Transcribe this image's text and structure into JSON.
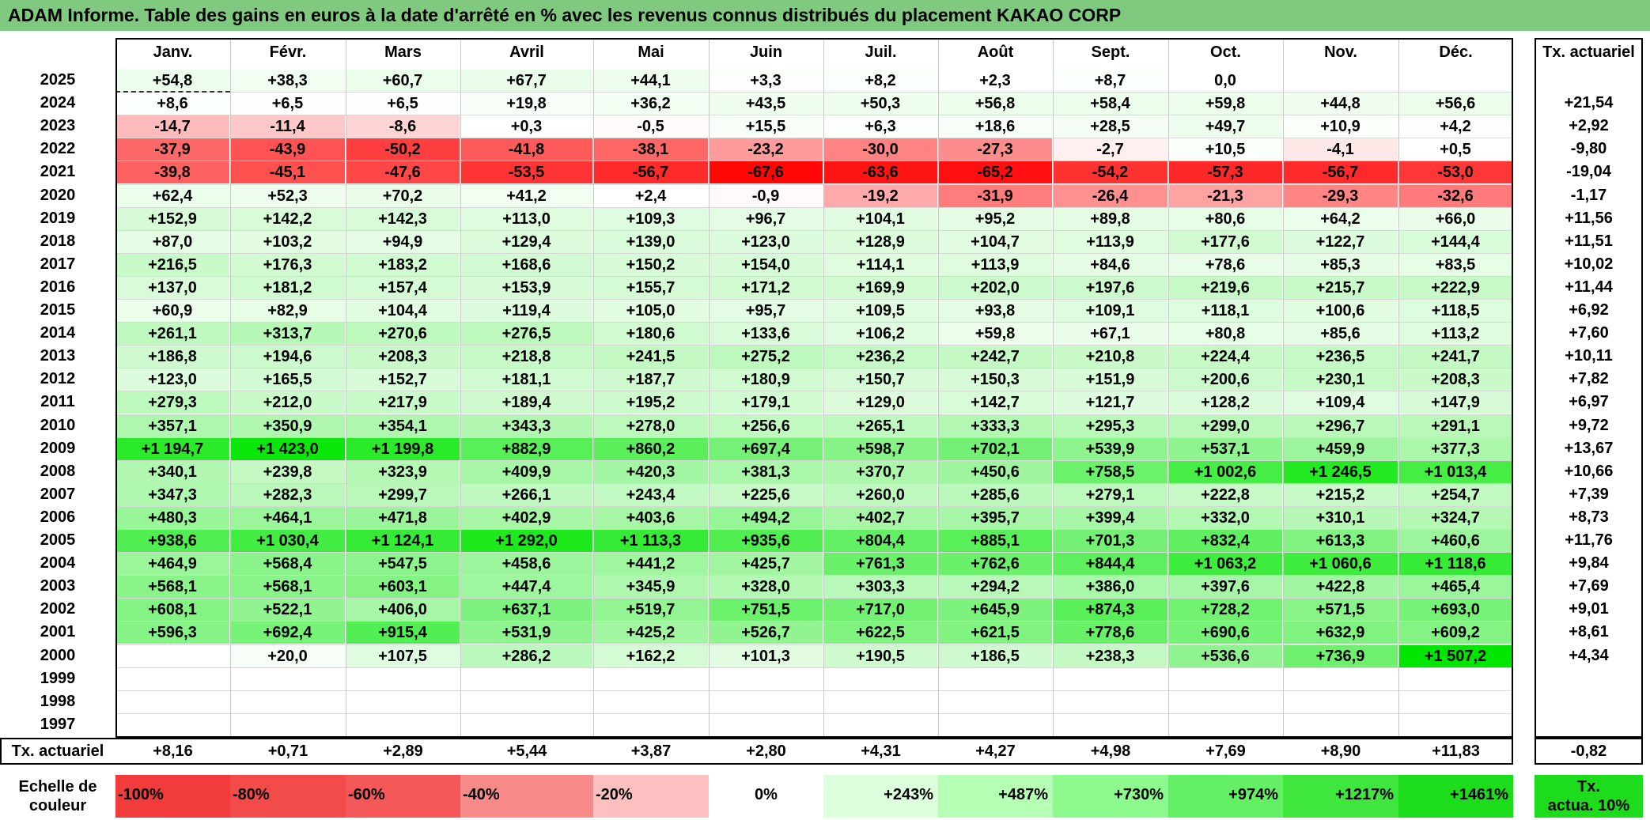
{
  "title": "ADAM Informe. Table des gains en euros à la date d'arrêté en % avec les revenus connus distribués du placement KAKAO CORP",
  "chart_data": {
    "type": "heatmap",
    "title": "ADAM Informe. Table des gains en euros à la date d'arrêté en % avec les revenus connus distribués du placement KAKAO CORP",
    "months": [
      "Janv.",
      "Févr.",
      "Mars",
      "Avril",
      "Mai",
      "Juin",
      "Juil.",
      "Août",
      "Sept.",
      "Oct.",
      "Nov.",
      "Déc."
    ],
    "rate_header": "Tx. actuariel",
    "rows": [
      {
        "year": "2025",
        "values": [
          "+54,8",
          "+38,3",
          "+60,7",
          "+67,7",
          "+44,1",
          "+3,3",
          "+8,2",
          "+2,3",
          "+8,7",
          "0,0",
          "",
          ""
        ],
        "rate": ""
      },
      {
        "year": "2024",
        "values": [
          "+8,6",
          "+6,5",
          "+6,5",
          "+19,8",
          "+36,2",
          "+43,5",
          "+50,3",
          "+56,8",
          "+58,4",
          "+59,8",
          "+44,8",
          "+56,6"
        ],
        "rate": "+21,54"
      },
      {
        "year": "2023",
        "values": [
          "-14,7",
          "-11,4",
          "-8,6",
          "+0,3",
          "-0,5",
          "+15,5",
          "+6,3",
          "+18,6",
          "+28,5",
          "+49,7",
          "+10,9",
          "+4,2"
        ],
        "rate": "+2,92"
      },
      {
        "year": "2022",
        "values": [
          "-37,9",
          "-43,9",
          "-50,2",
          "-41,8",
          "-38,1",
          "-23,2",
          "-30,0",
          "-27,3",
          "-2,7",
          "+10,5",
          "-4,1",
          "+0,5"
        ],
        "rate": "-9,80"
      },
      {
        "year": "2021",
        "values": [
          "-39,8",
          "-45,1",
          "-47,6",
          "-53,5",
          "-56,7",
          "-67,6",
          "-63,6",
          "-65,2",
          "-54,2",
          "-57,3",
          "-56,7",
          "-53,0"
        ],
        "rate": "-19,04"
      },
      {
        "year": "2020",
        "values": [
          "+62,4",
          "+52,3",
          "+70,2",
          "+41,2",
          "+2,4",
          "-0,9",
          "-19,2",
          "-31,9",
          "-26,4",
          "-21,3",
          "-29,3",
          "-32,6"
        ],
        "rate": "-1,17"
      },
      {
        "year": "2019",
        "values": [
          "+152,9",
          "+142,2",
          "+142,3",
          "+113,0",
          "+109,3",
          "+96,7",
          "+104,1",
          "+95,2",
          "+89,8",
          "+80,6",
          "+64,2",
          "+66,0"
        ],
        "rate": "+11,56"
      },
      {
        "year": "2018",
        "values": [
          "+87,0",
          "+103,2",
          "+94,9",
          "+129,4",
          "+139,0",
          "+123,0",
          "+128,9",
          "+104,7",
          "+113,9",
          "+177,6",
          "+122,7",
          "+144,4"
        ],
        "rate": "+11,51"
      },
      {
        "year": "2017",
        "values": [
          "+216,5",
          "+176,3",
          "+183,2",
          "+168,6",
          "+150,2",
          "+154,0",
          "+114,1",
          "+113,9",
          "+84,6",
          "+78,6",
          "+85,3",
          "+83,5"
        ],
        "rate": "+10,02"
      },
      {
        "year": "2016",
        "values": [
          "+137,0",
          "+181,2",
          "+157,4",
          "+153,9",
          "+155,7",
          "+171,2",
          "+169,9",
          "+202,0",
          "+197,6",
          "+219,6",
          "+215,7",
          "+222,9"
        ],
        "rate": "+11,44"
      },
      {
        "year": "2015",
        "values": [
          "+60,9",
          "+82,9",
          "+104,4",
          "+119,4",
          "+105,0",
          "+95,7",
          "+109,5",
          "+93,8",
          "+109,1",
          "+118,1",
          "+100,6",
          "+118,5"
        ],
        "rate": "+6,92"
      },
      {
        "year": "2014",
        "values": [
          "+261,1",
          "+313,7",
          "+270,6",
          "+276,5",
          "+180,6",
          "+133,6",
          "+106,2",
          "+59,8",
          "+67,1",
          "+80,8",
          "+85,6",
          "+113,2"
        ],
        "rate": "+7,60"
      },
      {
        "year": "2013",
        "values": [
          "+186,8",
          "+194,6",
          "+208,3",
          "+218,8",
          "+241,5",
          "+275,2",
          "+236,2",
          "+242,7",
          "+210,8",
          "+224,4",
          "+236,5",
          "+241,7"
        ],
        "rate": "+10,11"
      },
      {
        "year": "2012",
        "values": [
          "+123,0",
          "+165,5",
          "+152,7",
          "+181,1",
          "+187,7",
          "+180,9",
          "+150,7",
          "+150,3",
          "+151,9",
          "+200,6",
          "+230,1",
          "+208,3"
        ],
        "rate": "+7,82"
      },
      {
        "year": "2011",
        "values": [
          "+279,3",
          "+212,0",
          "+217,9",
          "+189,4",
          "+195,2",
          "+179,1",
          "+129,0",
          "+142,7",
          "+121,7",
          "+128,2",
          "+109,4",
          "+147,9"
        ],
        "rate": "+6,97"
      },
      {
        "year": "2010",
        "values": [
          "+357,1",
          "+350,9",
          "+354,1",
          "+343,3",
          "+278,0",
          "+256,6",
          "+265,1",
          "+333,3",
          "+295,3",
          "+299,0",
          "+296,7",
          "+291,1"
        ],
        "rate": "+9,72"
      },
      {
        "year": "2009",
        "values": [
          "+1 194,7",
          "+1 423,0",
          "+1 199,8",
          "+882,9",
          "+860,2",
          "+697,4",
          "+598,7",
          "+702,1",
          "+539,9",
          "+537,1",
          "+459,9",
          "+377,3"
        ],
        "rate": "+13,67"
      },
      {
        "year": "2008",
        "values": [
          "+340,1",
          "+239,8",
          "+323,9",
          "+409,9",
          "+420,3",
          "+381,3",
          "+370,7",
          "+450,6",
          "+758,5",
          "+1 002,6",
          "+1 246,5",
          "+1 013,4"
        ],
        "rate": "+10,66"
      },
      {
        "year": "2007",
        "values": [
          "+347,3",
          "+282,3",
          "+299,7",
          "+266,1",
          "+243,4",
          "+225,6",
          "+260,0",
          "+285,6",
          "+279,1",
          "+222,8",
          "+215,2",
          "+254,7"
        ],
        "rate": "+7,39"
      },
      {
        "year": "2006",
        "values": [
          "+480,3",
          "+464,1",
          "+471,8",
          "+402,9",
          "+403,6",
          "+494,2",
          "+402,7",
          "+395,7",
          "+399,4",
          "+332,0",
          "+310,1",
          "+324,7"
        ],
        "rate": "+8,73"
      },
      {
        "year": "2005",
        "values": [
          "+938,6",
          "+1 030,4",
          "+1 124,1",
          "+1 292,0",
          "+1 113,3",
          "+935,6",
          "+804,4",
          "+885,1",
          "+701,3",
          "+832,4",
          "+613,3",
          "+460,6"
        ],
        "rate": "+11,76"
      },
      {
        "year": "2004",
        "values": [
          "+464,9",
          "+568,4",
          "+547,5",
          "+458,6",
          "+441,2",
          "+425,7",
          "+761,3",
          "+762,6",
          "+844,4",
          "+1 063,2",
          "+1 060,6",
          "+1 118,6"
        ],
        "rate": "+9,84"
      },
      {
        "year": "2003",
        "values": [
          "+568,1",
          "+568,1",
          "+603,1",
          "+447,4",
          "+345,9",
          "+328,0",
          "+303,3",
          "+294,2",
          "+386,0",
          "+397,6",
          "+422,8",
          "+465,4"
        ],
        "rate": "+7,69"
      },
      {
        "year": "2002",
        "values": [
          "+608,1",
          "+522,1",
          "+406,0",
          "+637,1",
          "+519,7",
          "+751,5",
          "+717,0",
          "+645,9",
          "+874,3",
          "+728,2",
          "+571,5",
          "+693,0"
        ],
        "rate": "+9,01"
      },
      {
        "year": "2001",
        "values": [
          "+596,3",
          "+692,4",
          "+915,4",
          "+531,9",
          "+425,2",
          "+526,7",
          "+622,5",
          "+621,5",
          "+778,6",
          "+690,6",
          "+632,9",
          "+609,2"
        ],
        "rate": "+8,61"
      },
      {
        "year": "2000",
        "values": [
          "",
          "+20,0",
          "+107,5",
          "+286,2",
          "+162,2",
          "+101,3",
          "+190,5",
          "+186,5",
          "+238,3",
          "+536,6",
          "+736,9",
          "+1 507,2"
        ],
        "rate": "+4,34"
      },
      {
        "year": "1999",
        "values": [
          "",
          "",
          "",
          "",
          "",
          "",
          "",
          "",
          "",
          "",
          "",
          ""
        ],
        "rate": ""
      },
      {
        "year": "1998",
        "values": [
          "",
          "",
          "",
          "",
          "",
          "",
          "",
          "",
          "",
          "",
          "",
          ""
        ],
        "rate": ""
      },
      {
        "year": "1997",
        "values": [
          "",
          "",
          "",
          "",
          "",
          "",
          "",
          "",
          "",
          "",
          "",
          ""
        ],
        "rate": ""
      }
    ],
    "footer": {
      "label": "Tx. actuariel",
      "values": [
        "+8,16",
        "+0,71",
        "+2,89",
        "+5,44",
        "+3,87",
        "+2,80",
        "+4,31",
        "+4,27",
        "+4,98",
        "+7,69",
        "+8,90",
        "+11,83"
      ],
      "rate": "-0,82"
    },
    "legend": {
      "label_line1": "Echelle de",
      "label_line2": "couleur",
      "steps": [
        {
          "text": "-100%",
          "color": "#f23c3c",
          "align": "left"
        },
        {
          "text": "-80%",
          "color": "#f34a4a",
          "align": "left"
        },
        {
          "text": "-60%",
          "color": "#f55858",
          "align": "left"
        },
        {
          "text": "-40%",
          "color": "#f88a8a",
          "align": "left"
        },
        {
          "text": "-20%",
          "color": "#fcc0c0",
          "align": "left"
        },
        {
          "text": "0%",
          "color": "#ffffff",
          "align": "center"
        },
        {
          "text": "+243%",
          "color": "#dcffdc",
          "align": "right"
        },
        {
          "text": "+487%",
          "color": "#b4ffb4",
          "align": "right"
        },
        {
          "text": "+730%",
          "color": "#8cfa8c",
          "align": "right"
        },
        {
          "text": "+974%",
          "color": "#64f064",
          "align": "right"
        },
        {
          "text": "+1217%",
          "color": "#3ee63e",
          "align": "right"
        },
        {
          "text": "+1461%",
          "color": "#1cdc1c",
          "align": "right"
        }
      ],
      "rate_note_line1": "Tx.",
      "rate_note_line2": "actua. 10%",
      "rate_note_color": "#1cdc1c"
    },
    "color_scale": {
      "negative_full": -70,
      "positive_full": 1500,
      "neg_color": "#ff0000",
      "pos_color": "#00e600"
    }
  }
}
